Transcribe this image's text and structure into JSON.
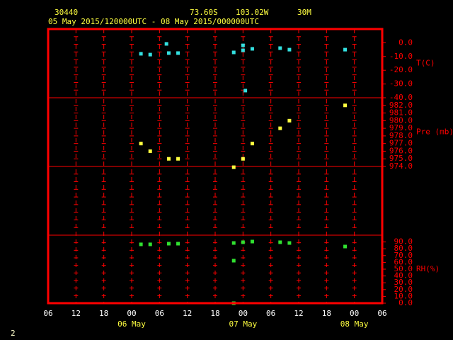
{
  "header": {
    "station": "30440",
    "lat": "73.60S",
    "lon": "103.02W",
    "elev": "30M",
    "period": "05 May 2015/120000UTC - 08 May 2015/000000UTC",
    "page": "2"
  },
  "x_axis": {
    "xlim": [
      0,
      72
    ],
    "xticks": [
      {
        "value": 0,
        "label": "06"
      },
      {
        "value": 6,
        "label": "12"
      },
      {
        "value": 12,
        "label": "18"
      },
      {
        "value": 18,
        "label": "00"
      },
      {
        "value": 24,
        "label": "06"
      },
      {
        "value": 30,
        "label": "12"
      },
      {
        "value": 36,
        "label": "18"
      },
      {
        "value": 42,
        "label": "00"
      },
      {
        "value": 48,
        "label": "06"
      },
      {
        "value": 54,
        "label": "12"
      },
      {
        "value": 60,
        "label": "18"
      },
      {
        "value": 66,
        "label": "00"
      },
      {
        "value": 72,
        "label": "06"
      }
    ],
    "date_labels": [
      {
        "value": 18,
        "label": "06 May"
      },
      {
        "value": 42,
        "label": "07 May"
      },
      {
        "value": 66,
        "label": "08 May"
      }
    ]
  },
  "chart_data": [
    {
      "type": "scatter",
      "y_label": "T(C)",
      "ylim": [
        -40,
        10
      ],
      "yticks": [
        {
          "value": 0,
          "label": "0.0"
        },
        {
          "value": -10,
          "label": "-10.0"
        },
        {
          "value": -20,
          "label": "-20.0"
        },
        {
          "value": -30,
          "label": "-30.0"
        },
        {
          "value": -40,
          "label": "-40.0"
        }
      ],
      "series": [
        {
          "color": "#33e0e0",
          "x": [
            20,
            22,
            25.5,
            26,
            28,
            40,
            42,
            42,
            42.5,
            44,
            50,
            52,
            64
          ],
          "values": [
            -8.0,
            -8.6,
            -0.8,
            -7.5,
            -7.5,
            -7.0,
            -1.9,
            -5.5,
            -34.8,
            -4.4,
            -3.9,
            -5.0,
            -5.0
          ]
        }
      ]
    },
    {
      "type": "scatter",
      "y_label": "Pre (mb)",
      "ylim": [
        974,
        983
      ],
      "yticks": [
        {
          "value": 982,
          "label": "982.0"
        },
        {
          "value": 981,
          "label": "981.0"
        },
        {
          "value": 980,
          "label": "980.0"
        },
        {
          "value": 979,
          "label": "979.0"
        },
        {
          "value": 978,
          "label": "978.0"
        },
        {
          "value": 977,
          "label": "977.0"
        },
        {
          "value": 976,
          "label": "976.0"
        },
        {
          "value": 975,
          "label": "975.0"
        },
        {
          "value": 974,
          "label": "974.0"
        }
      ],
      "series": [
        {
          "color": "#ffff40",
          "x": [
            20,
            22,
            26,
            28,
            40,
            42,
            44,
            50,
            52,
            64
          ],
          "values": [
            977.0,
            976.0,
            975.0,
            975.0,
            973.9,
            975.0,
            977.0,
            979.0,
            980.0,
            982.0
          ]
        }
      ]
    },
    {
      "type": "scatter",
      "y_label": "RH(%)",
      "ylim": [
        0,
        100
      ],
      "yticks": [
        {
          "value": 90,
          "label": "90.0"
        },
        {
          "value": 80,
          "label": "80.0"
        },
        {
          "value": 70,
          "label": "70.0"
        },
        {
          "value": 60,
          "label": "60.0"
        },
        {
          "value": 50,
          "label": "50.0"
        },
        {
          "value": 40,
          "label": "40.0"
        },
        {
          "value": 30,
          "label": "30.0"
        },
        {
          "value": 20,
          "label": "20.0"
        },
        {
          "value": 10,
          "label": "10.0"
        },
        {
          "value": 0,
          "label": "0.0"
        }
      ],
      "series": [
        {
          "color": "#30e030",
          "x": [
            20,
            22,
            26,
            28,
            40,
            40,
            40,
            42,
            44,
            50,
            52,
            64
          ],
          "values": [
            86.5,
            86.5,
            87.5,
            87.5,
            88.5,
            62.5,
            0,
            89.6,
            90.6,
            89.6,
            88.5,
            83.3
          ]
        }
      ]
    }
  ]
}
